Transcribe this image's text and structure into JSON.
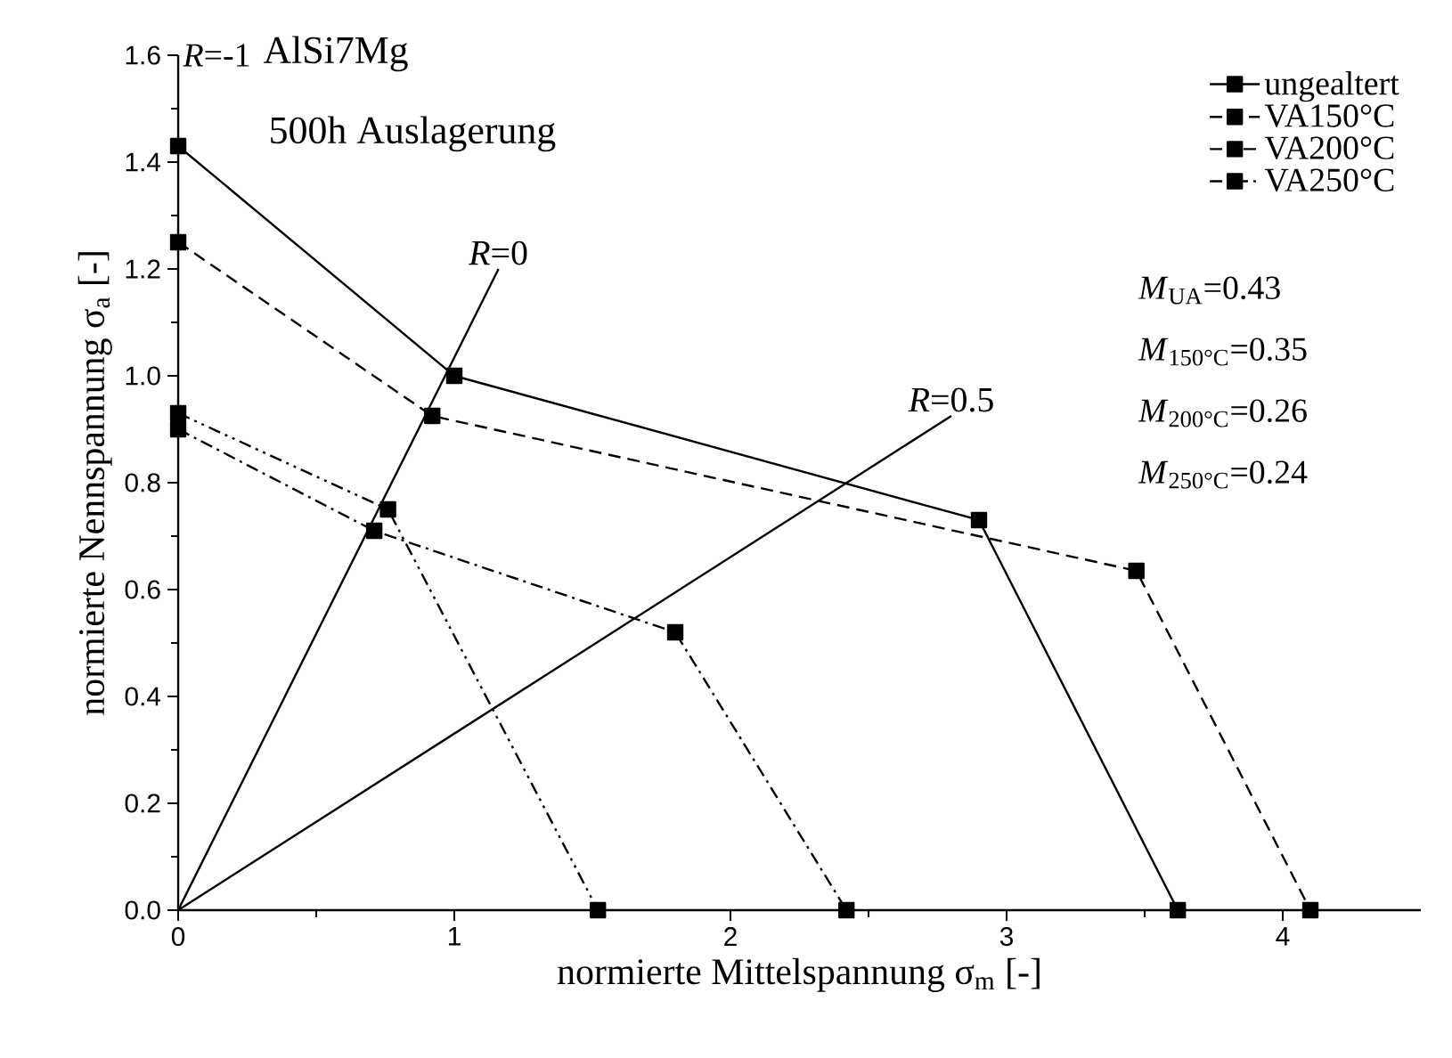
{
  "chart_data": {
    "type": "line",
    "title": "AlSi7Mg",
    "subtitle": "500h Auslagerung",
    "xlabel": "normierte Mittelspannung σ$_{m}$ [-]",
    "ylabel": "normierte Nennspannung σ$_{a}$ [-]",
    "xlim": [
      0,
      4.5
    ],
    "ylim": [
      0,
      1.6
    ],
    "xticks": [
      0,
      1,
      2,
      3,
      4
    ],
    "yticks": [
      {
        "value": 0,
        "label": "0.0"
      },
      {
        "value": 0.2,
        "label": "0.2"
      },
      {
        "value": 0.4,
        "label": "0.4"
      },
      {
        "value": 0.6,
        "label": "0.6"
      },
      {
        "value": 0.8,
        "label": "0.8"
      },
      {
        "value": 1.0,
        "label": "1.0"
      },
      {
        "value": 1.2,
        "label": "1.2"
      },
      {
        "value": 1.4,
        "label": "1.4"
      },
      {
        "value": 1.6,
        "label": "1.6"
      }
    ],
    "grid": false,
    "legend": "top right",
    "marker": "square",
    "series": [
      {
        "name": "ungealtert",
        "color": "#000000",
        "line_style": "solid",
        "x": [
          0,
          1,
          2.9,
          3.62
        ],
        "values": [
          1.43,
          1.0,
          0.73,
          0
        ]
      },
      {
        "name": "VA150°C",
        "color": "#000000",
        "line_style": "dashed",
        "x": [
          0,
          0.92,
          3.47,
          4.1
        ],
        "values": [
          1.25,
          0.925,
          0.635,
          0
        ]
      },
      {
        "name": "VA200°C",
        "color": "#000000",
        "line_style": "dashdotdot",
        "x": [
          0,
          0.76,
          1.52
        ],
        "values": [
          0.93,
          0.75,
          0
        ]
      },
      {
        "name": "VA250°C",
        "color": "#000000",
        "line_style": "dashdot",
        "x": [
          0,
          0.71,
          1.8,
          2.42
        ],
        "values": [
          0.9,
          0.71,
          0.52,
          0
        ]
      },
      {
        "name": "*R*=0",
        "color": "#000000",
        "line_style": "solid",
        "marker": "none",
        "x": [
          0,
          1.16
        ],
        "values": [
          0,
          1.2
        ]
      },
      {
        "name": "*R*=0.5",
        "color": "#000000",
        "line_style": "solid",
        "marker": "none",
        "x": [
          0,
          2.8
        ],
        "values": [
          0,
          0.925
        ]
      }
    ],
    "annotations": [
      "*R*=-1",
      "*M*$_{UA}$=0.43",
      "*M*$_{150°C}$=0.35",
      "*M*$_{200°C}$=0.26",
      "*M*$_{250°C}$=0.24"
    ]
  }
}
